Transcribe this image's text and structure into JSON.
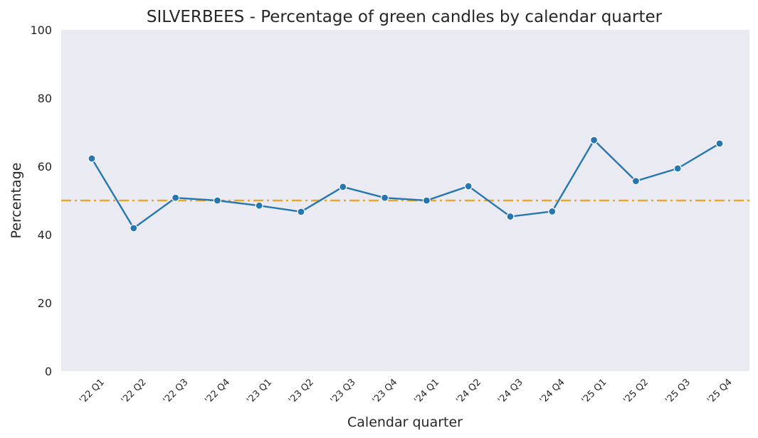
{
  "chart_data": {
    "type": "line",
    "title": "SILVERBEES - Percentage of green candles by calendar quarter",
    "xlabel": "Calendar quarter",
    "ylabel": "Percentage",
    "ylim": [
      0,
      100
    ],
    "yticks": [
      "0",
      "20",
      "40",
      "60",
      "80",
      "100"
    ],
    "categories": [
      "'22 Q1",
      "'22 Q2",
      "'22 Q3",
      "'22 Q4",
      "'23 Q1",
      "'23 Q2",
      "'23 Q3",
      "'23 Q4",
      "'24 Q1",
      "'24 Q2",
      "'24 Q3",
      "'24 Q4",
      "'25 Q1",
      "'25 Q2",
      "'25 Q3",
      "'25 Q4"
    ],
    "series": [
      {
        "name": "Percentage of green candles",
        "values": [
          62.3,
          41.9,
          50.8,
          50.0,
          48.5,
          46.7,
          54.0,
          50.8,
          50.0,
          54.2,
          45.3,
          46.8,
          67.7,
          55.7,
          59.4,
          66.7
        ]
      }
    ],
    "reference_line": {
      "y": 50
    },
    "colors": {
      "line": "#2677b0",
      "reference": "#e5a72e",
      "plot_bg": "#eaeaf2"
    }
  }
}
